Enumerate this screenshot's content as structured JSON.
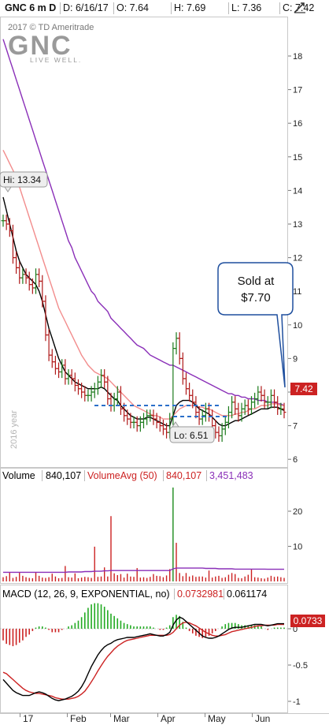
{
  "header": {
    "symbol": "GNC 6 m D",
    "date": "D: 6/16/17",
    "open": "O: 7.64",
    "high": "H: 7.69",
    "low": "L: 7.36",
    "close": "C: 7.42"
  },
  "watermark": {
    "copyright": "2017 © TD Ameritrade",
    "logo_text": "GNC",
    "tagline": "LIVE WELL."
  },
  "price_pane": {
    "hi_label": "Hi: 13.34",
    "lo_label": "Lo: 6.51",
    "callout_line1": "Sold at",
    "callout_line2": "$7.70",
    "last_price": "7.42",
    "year_label": "2016 year",
    "y_ticks": [
      "6",
      "7",
      "8",
      "9",
      "10",
      "11",
      "12",
      "13",
      "14",
      "15",
      "16",
      "17",
      "18"
    ]
  },
  "volume_pane": {
    "title": "Volume",
    "volume": "840,107",
    "avg_label": "VolumeAvg (50)",
    "avg_value": "840,107",
    "avg_value2": "3,451,483",
    "y_ticks": [
      "10",
      "20"
    ]
  },
  "macd_pane": {
    "title": "MACD (12, 26, 9, EXPONENTIAL, no)",
    "value1": "0.0732981",
    "value2": "0.061174",
    "last_value": "0.0733",
    "y_ticks": [
      "0",
      "-0.5",
      "-1"
    ]
  },
  "x_axis": {
    "labels": [
      "17",
      "Feb",
      "Mar",
      "Apr",
      "May",
      "Jun"
    ]
  },
  "colors": {
    "price_ma_fast": "#000000",
    "price_ma_mid": "#f28c8c",
    "price_ma_slow": "#8a2fb8",
    "volume_bar": "#cc2222",
    "volume_avg": "#8a2fb8",
    "macd_line": "#000000",
    "macd_signal": "#cc2222",
    "hist_up": "#22aa22",
    "hist_down": "#cc2222",
    "last_price_box": "#cc2222",
    "support_line": "#2a6fc9"
  },
  "chart_data": {
    "type": "line",
    "title": "GNC 6 m D",
    "x_labels": [
      "17",
      "Feb",
      "Mar",
      "Apr",
      "May",
      "Jun"
    ],
    "ylim": [
      5.3,
      19
    ],
    "close": [
      13.1,
      13.0,
      12.8,
      12.0,
      11.7,
      11.4,
      11.5,
      11.4,
      11.2,
      11.1,
      11.5,
      11.3,
      10.7,
      9.7,
      9.1,
      8.9,
      8.7,
      8.6,
      8.8,
      8.4,
      8.5,
      8.4,
      8.2,
      8.1,
      8.0,
      7.9,
      7.9,
      8.0,
      8.1,
      8.3,
      8.5,
      8.3,
      7.8,
      7.6,
      7.8,
      8.0,
      7.5,
      7.3,
      7.2,
      7.1,
      7.1,
      7.0,
      7.1,
      7.2,
      7.3,
      7.3,
      7.2,
      7.1,
      7.0,
      6.9,
      6.8,
      7.2,
      9.3,
      9.6,
      9.0,
      8.4,
      8.1,
      7.9,
      7.7,
      7.4,
      7.2,
      7.3,
      7.5,
      7.3,
      7.0,
      6.8,
      6.7,
      6.9,
      7.1,
      7.4,
      7.7,
      7.5,
      7.3,
      7.5,
      7.6,
      7.5,
      7.7,
      7.8,
      8.0,
      7.9,
      7.7,
      7.7,
      7.9,
      7.7,
      7.5,
      7.5,
      7.4
    ],
    "ma_fast": [
      13.8,
      13.4,
      13.0,
      12.6,
      12.2,
      11.9,
      11.7,
      11.5,
      11.4,
      11.3,
      11.2,
      11.0,
      10.7,
      10.3,
      9.9,
      9.6,
      9.3,
      9.0,
      8.8,
      8.6,
      8.5,
      8.4,
      8.3,
      8.25,
      8.2,
      8.15,
      8.1,
      8.1,
      8.1,
      8.1,
      8.15,
      8.1,
      8.0,
      7.9,
      7.8,
      7.75,
      7.6,
      7.5,
      7.4,
      7.3,
      7.25,
      7.2,
      7.2,
      7.2,
      7.25,
      7.25,
      7.2,
      7.15,
      7.1,
      7.05,
      7.0,
      7.0,
      7.3,
      7.6,
      7.7,
      7.75,
      7.75,
      7.75,
      7.7,
      7.6,
      7.5,
      7.45,
      7.4,
      7.35,
      7.25,
      7.15,
      7.05,
      7.0,
      7.0,
      7.05,
      7.1,
      7.15,
      7.15,
      7.2,
      7.25,
      7.3,
      7.35,
      7.4,
      7.45,
      7.5,
      7.5,
      7.5,
      7.55,
      7.55,
      7.55,
      7.5,
      7.45
    ],
    "ma_mid": [
      15.2,
      15.0,
      14.8,
      14.6,
      14.4,
      14.1,
      13.8,
      13.5,
      13.2,
      12.9,
      12.6,
      12.3,
      12.0,
      11.7,
      11.4,
      11.1,
      10.8,
      10.5,
      10.3,
      10.1,
      9.9,
      9.7,
      9.5,
      9.3,
      9.1,
      8.95,
      8.8,
      8.7,
      8.6,
      8.55,
      8.5,
      8.45,
      8.4,
      8.3,
      8.2,
      8.1,
      8.0,
      7.9,
      7.8,
      7.7,
      7.6,
      7.55,
      7.5,
      7.45,
      7.4,
      7.35,
      7.3,
      7.3,
      7.25,
      7.2,
      7.2,
      7.2,
      7.3,
      7.4,
      7.5,
      7.55,
      7.6,
      7.6,
      7.6,
      7.6,
      7.55,
      7.55,
      7.5,
      7.5,
      7.45,
      7.4,
      7.35,
      7.3,
      7.3,
      7.3,
      7.3,
      7.35,
      7.35,
      7.4,
      7.4,
      7.45,
      7.5,
      7.5,
      7.55,
      7.6,
      7.6,
      7.6,
      7.65,
      7.65,
      7.65,
      7.6,
      7.6
    ],
    "ma_slow": [
      18.5,
      18.2,
      17.9,
      17.6,
      17.3,
      17.0,
      16.7,
      16.4,
      16.1,
      15.8,
      15.5,
      15.2,
      14.9,
      14.6,
      14.3,
      14.0,
      13.7,
      13.4,
      13.1,
      12.8,
      12.5,
      12.3,
      12.0,
      11.8,
      11.6,
      11.4,
      11.2,
      11.0,
      10.9,
      10.7,
      10.6,
      10.5,
      10.4,
      10.2,
      10.1,
      10.0,
      9.9,
      9.8,
      9.7,
      9.6,
      9.5,
      9.4,
      9.35,
      9.3,
      9.2,
      9.1,
      9.05,
      9.0,
      8.95,
      8.9,
      8.85,
      8.8,
      8.8,
      8.75,
      8.7,
      8.65,
      8.6,
      8.55,
      8.5,
      8.45,
      8.4,
      8.35,
      8.3,
      8.25,
      8.2,
      8.15,
      8.1,
      8.05,
      8.0,
      7.95,
      7.95,
      7.9,
      7.9,
      7.85,
      7.85,
      7.8,
      7.8,
      7.8,
      7.75,
      7.75,
      7.75,
      7.7,
      7.7,
      7.7,
      7.65,
      7.65,
      7.6
    ],
    "volume": [
      1.2,
      1.5,
      2.6,
      1.0,
      1.3,
      2.7,
      1.6,
      1.2,
      1.0,
      0.9,
      2.5,
      1.6,
      1.1,
      1.0,
      1.2,
      2.2,
      1.4,
      0.9,
      1.0,
      4.4,
      1.2,
      1.1,
      2.3,
      0.9,
      1.1,
      1.3,
      1.2,
      1.0,
      9.9,
      1.3,
      1.4,
      4.0,
      1.4,
      18.6,
      2.3,
      1.8,
      2.1,
      1.1,
      2.2,
      1.4,
      1.3,
      3.8,
      1.1,
      1.2,
      1.0,
      1.3,
      2.1,
      1.6,
      1.5,
      1.2,
      1.7,
      3.5,
      27.8,
      11.0,
      2.4,
      1.5,
      2.4,
      1.4,
      1.7,
      1.3,
      1.4,
      1.4,
      1.1,
      3.1,
      1.1,
      1.4,
      1.6,
      1.0,
      1.2,
      1.9,
      2.4,
      2.1,
      1.0,
      0.9,
      1.4,
      1.9,
      3.6,
      1.2,
      1.1,
      0.9,
      0.8,
      1.1,
      1.6,
      1.3,
      1.4,
      1.2,
      1.0
    ],
    "volume_avg": [
      2.6,
      2.6,
      2.6,
      2.6,
      2.6,
      2.6,
      2.6,
      2.6,
      2.6,
      2.6,
      2.6,
      2.6,
      2.6,
      2.6,
      2.6,
      2.6,
      2.6,
      2.6,
      2.6,
      2.6,
      2.7,
      2.7,
      2.7,
      2.7,
      2.7,
      2.8,
      2.8,
      2.8,
      2.9,
      2.9,
      2.9,
      3.0,
      3.0,
      3.1,
      3.1,
      3.1,
      3.1,
      3.1,
      3.1,
      3.1,
      3.1,
      3.1,
      3.1,
      3.1,
      3.1,
      3.1,
      3.1,
      3.1,
      3.1,
      3.1,
      3.1,
      3.1,
      3.6,
      3.8,
      3.8,
      3.8,
      3.8,
      3.8,
      3.8,
      3.8,
      3.8,
      3.8,
      3.7,
      3.7,
      3.7,
      3.7,
      3.6,
      3.6,
      3.6,
      3.6,
      3.6,
      3.5,
      3.5,
      3.5,
      3.5,
      3.5,
      3.5,
      3.5,
      3.5,
      3.5,
      3.5,
      3.45,
      3.45,
      3.45,
      3.45,
      3.45,
      3.45
    ],
    "macd": [
      -0.7,
      -0.75,
      -0.8,
      -0.85,
      -0.88,
      -0.9,
      -0.92,
      -0.92,
      -0.92,
      -0.9,
      -0.88,
      -0.87,
      -0.88,
      -0.9,
      -0.93,
      -0.96,
      -0.98,
      -0.99,
      -0.98,
      -0.97,
      -0.95,
      -0.93,
      -0.9,
      -0.86,
      -0.8,
      -0.72,
      -0.62,
      -0.52,
      -0.44,
      -0.36,
      -0.3,
      -0.25,
      -0.22,
      -0.2,
      -0.17,
      -0.15,
      -0.14,
      -0.13,
      -0.12,
      -0.12,
      -0.12,
      -0.11,
      -0.1,
      -0.09,
      -0.08,
      -0.07,
      -0.08,
      -0.09,
      -0.1,
      -0.1,
      -0.08,
      -0.05,
      0.05,
      0.12,
      0.16,
      0.14,
      0.1,
      0.06,
      0.02,
      -0.02,
      -0.06,
      -0.1,
      -0.12,
      -0.13,
      -0.13,
      -0.12,
      -0.1,
      -0.07,
      -0.04,
      -0.01,
      0.01,
      0.02,
      0.02,
      0.02,
      0.03,
      0.04,
      0.05,
      0.06,
      0.06,
      0.06,
      0.05,
      0.04,
      0.05,
      0.06,
      0.07,
      0.07,
      0.07
    ],
    "macd_signal": [
      -0.6,
      -0.62,
      -0.66,
      -0.7,
      -0.74,
      -0.78,
      -0.82,
      -0.85,
      -0.87,
      -0.88,
      -0.89,
      -0.89,
      -0.9,
      -0.91,
      -0.92,
      -0.93,
      -0.95,
      -0.96,
      -0.97,
      -0.97,
      -0.97,
      -0.96,
      -0.95,
      -0.93,
      -0.9,
      -0.86,
      -0.8,
      -0.73,
      -0.66,
      -0.58,
      -0.51,
      -0.44,
      -0.38,
      -0.33,
      -0.28,
      -0.24,
      -0.21,
      -0.18,
      -0.16,
      -0.15,
      -0.14,
      -0.13,
      -0.12,
      -0.11,
      -0.1,
      -0.09,
      -0.09,
      -0.09,
      -0.09,
      -0.09,
      -0.09,
      -0.08,
      -0.05,
      0.0,
      0.05,
      0.08,
      0.09,
      0.08,
      0.06,
      0.04,
      0.01,
      -0.02,
      -0.05,
      -0.07,
      -0.09,
      -0.1,
      -0.1,
      -0.09,
      -0.08,
      -0.06,
      -0.04,
      -0.03,
      -0.02,
      -0.01,
      0.0,
      0.01,
      0.02,
      0.03,
      0.04,
      0.04,
      0.05,
      0.05,
      0.05,
      0.05,
      0.06,
      0.06,
      0.06
    ]
  }
}
